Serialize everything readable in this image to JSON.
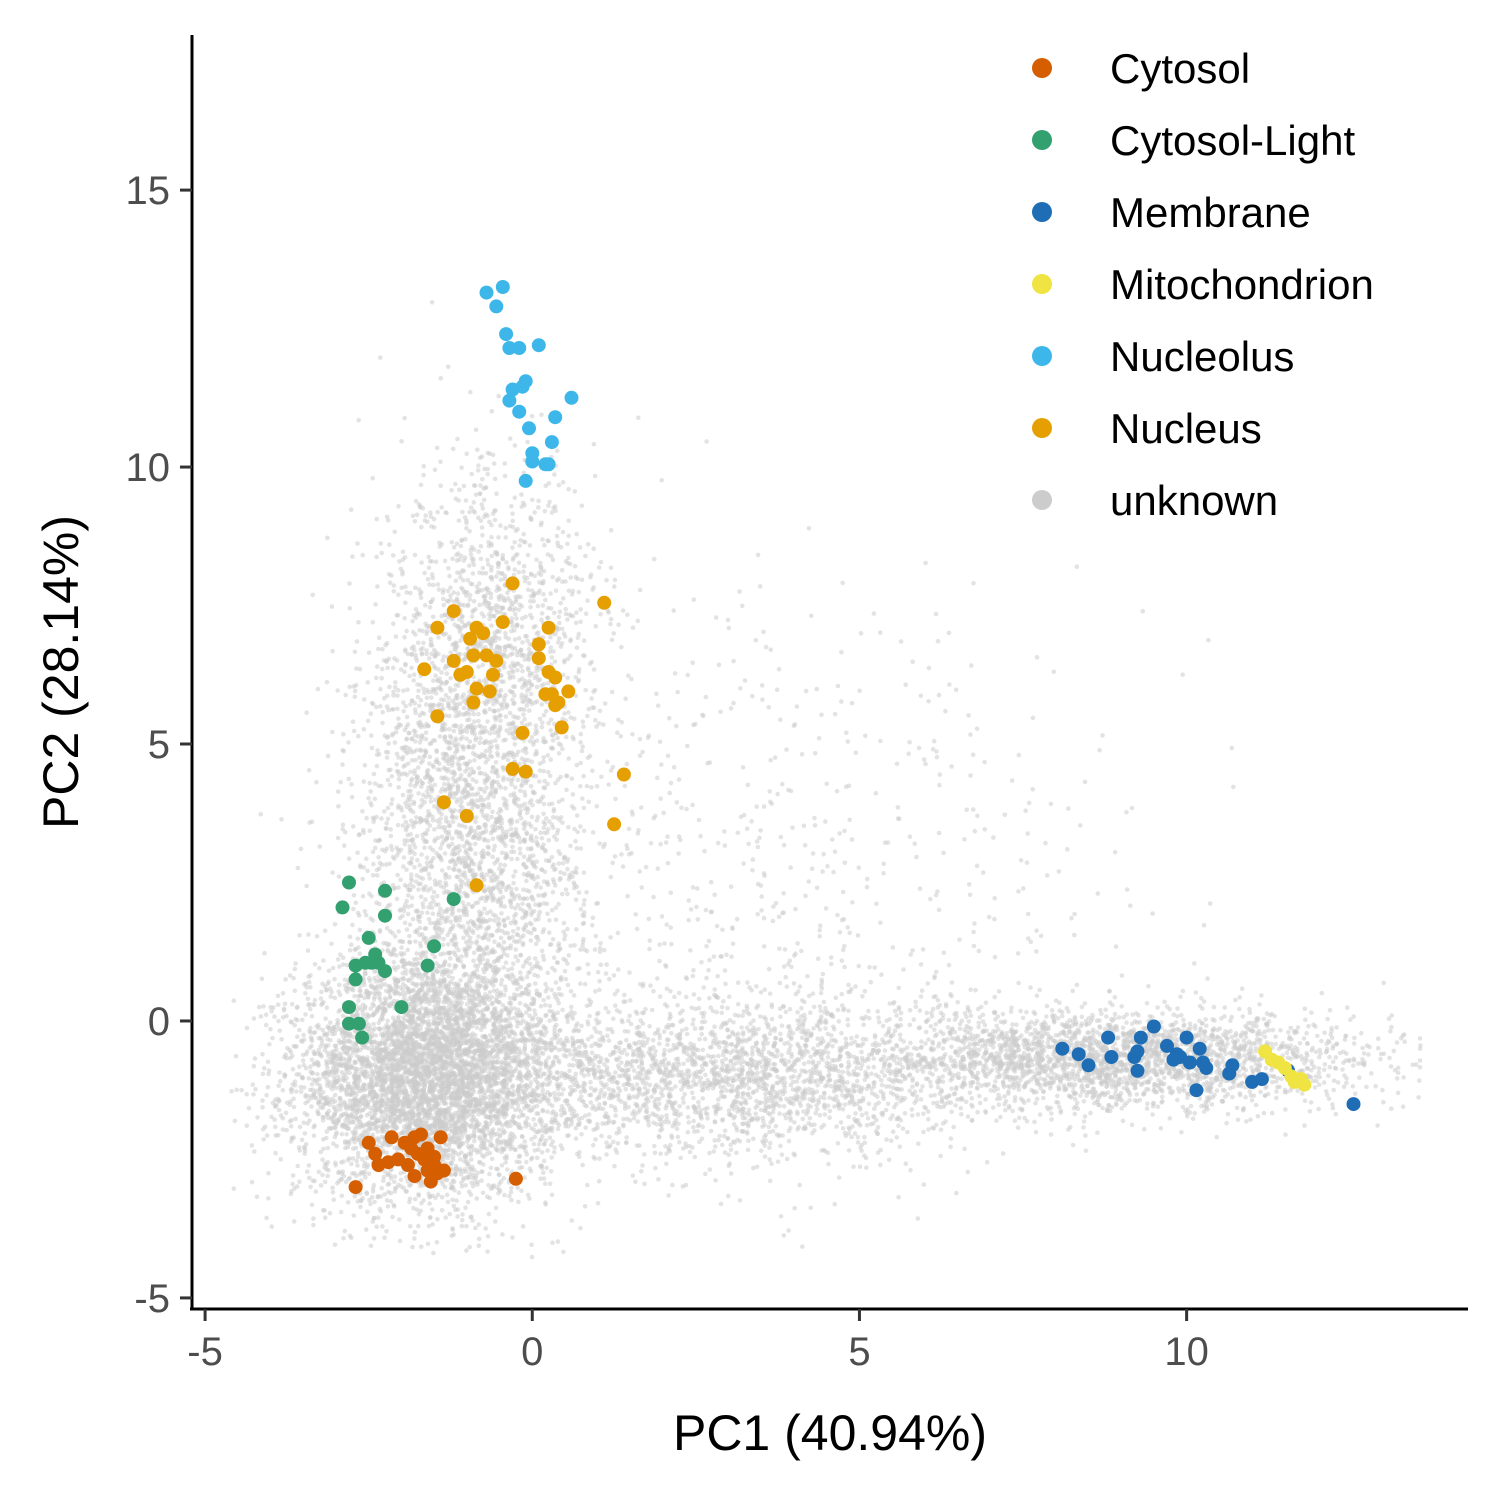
{
  "chart_data": {
    "type": "scatter",
    "title": "",
    "xlabel": "PC1 (40.94%)",
    "ylabel": "PC2 (28.14%)",
    "xlim": [
      -5.2,
      14.3
    ],
    "ylim": [
      -5.2,
      17.8
    ],
    "x_ticks": [
      -5,
      0,
      5,
      10
    ],
    "y_ticks": [
      -5,
      0,
      5,
      10,
      15
    ],
    "x_tick_labels": [
      "-5",
      "0",
      "5",
      "10"
    ],
    "y_tick_labels": [
      "-5",
      "0",
      "5",
      "10",
      "15"
    ],
    "grid": false,
    "legend_position": "top-right",
    "legend_marker": "●",
    "series": [
      {
        "name": "Cytosol",
        "color": "#D55E00",
        "points": [
          [
            -2.7,
            -3.0
          ],
          [
            -2.5,
            -2.2
          ],
          [
            -2.4,
            -2.4
          ],
          [
            -2.35,
            -2.6
          ],
          [
            -2.2,
            -2.55
          ],
          [
            -2.15,
            -2.1
          ],
          [
            -2.05,
            -2.5
          ],
          [
            -1.95,
            -2.2
          ],
          [
            -1.9,
            -2.6
          ],
          [
            -1.85,
            -2.3
          ],
          [
            -1.8,
            -2.1
          ],
          [
            -1.8,
            -2.8
          ],
          [
            -1.75,
            -2.4
          ],
          [
            -1.7,
            -2.05
          ],
          [
            -1.65,
            -2.5
          ],
          [
            -1.6,
            -2.7
          ],
          [
            -1.6,
            -2.3
          ],
          [
            -1.55,
            -2.9
          ],
          [
            -1.5,
            -2.6
          ],
          [
            -1.5,
            -2.45
          ],
          [
            -1.45,
            -2.75
          ],
          [
            -1.4,
            -2.1
          ],
          [
            -1.35,
            -2.7
          ],
          [
            -0.25,
            -2.85
          ]
        ]
      },
      {
        "name": "Cytosol-Light",
        "color": "#33A070",
        "points": [
          [
            -2.9,
            2.05
          ],
          [
            -2.8,
            2.5
          ],
          [
            -2.8,
            0.25
          ],
          [
            -2.8,
            -0.05
          ],
          [
            -2.7,
            0.75
          ],
          [
            -2.7,
            1.0
          ],
          [
            -2.65,
            -0.05
          ],
          [
            -2.6,
            -0.3
          ],
          [
            -2.55,
            1.05
          ],
          [
            -2.5,
            1.5
          ],
          [
            -2.45,
            1.05
          ],
          [
            -2.4,
            1.2
          ],
          [
            -2.35,
            1.05
          ],
          [
            -2.25,
            2.35
          ],
          [
            -2.25,
            1.9
          ],
          [
            -2.25,
            0.9
          ],
          [
            -2.0,
            0.25
          ],
          [
            -1.6,
            1.0
          ],
          [
            -1.5,
            1.35
          ],
          [
            -1.2,
            2.2
          ]
        ]
      },
      {
        "name": "Membrane",
        "color": "#1F6EB5",
        "points": [
          [
            8.1,
            -0.5
          ],
          [
            8.35,
            -0.6
          ],
          [
            8.5,
            -0.8
          ],
          [
            8.8,
            -0.3
          ],
          [
            8.85,
            -0.65
          ],
          [
            9.2,
            -0.65
          ],
          [
            9.25,
            -0.55
          ],
          [
            9.25,
            -0.9
          ],
          [
            9.3,
            -0.3
          ],
          [
            9.5,
            -0.1
          ],
          [
            9.7,
            -0.45
          ],
          [
            9.8,
            -0.7
          ],
          [
            9.85,
            -0.6
          ],
          [
            9.9,
            -0.65
          ],
          [
            10.0,
            -0.3
          ],
          [
            10.05,
            -0.75
          ],
          [
            10.15,
            -1.25
          ],
          [
            10.2,
            -0.5
          ],
          [
            10.25,
            -0.75
          ],
          [
            10.3,
            -0.85
          ],
          [
            10.65,
            -0.95
          ],
          [
            10.7,
            -0.8
          ],
          [
            11.0,
            -1.1
          ],
          [
            11.15,
            -1.05
          ],
          [
            11.55,
            -0.9
          ],
          [
            12.55,
            -1.5
          ]
        ]
      },
      {
        "name": "Mitochondrion",
        "color": "#F0E442",
        "points": [
          [
            11.2,
            -0.55
          ],
          [
            11.3,
            -0.7
          ],
          [
            11.4,
            -0.75
          ],
          [
            11.5,
            -0.85
          ],
          [
            11.6,
            -1.0
          ],
          [
            11.65,
            -1.1
          ],
          [
            11.75,
            -1.05
          ],
          [
            11.8,
            -1.15
          ]
        ]
      },
      {
        "name": "Nucleolus",
        "color": "#3DB7E9",
        "points": [
          [
            -0.7,
            13.15
          ],
          [
            -0.55,
            12.9
          ],
          [
            -0.45,
            13.25
          ],
          [
            -0.4,
            12.4
          ],
          [
            -0.35,
            12.15
          ],
          [
            -0.35,
            11.2
          ],
          [
            -0.3,
            11.4
          ],
          [
            -0.2,
            12.15
          ],
          [
            -0.2,
            11.0
          ],
          [
            -0.15,
            11.45
          ],
          [
            -0.1,
            11.55
          ],
          [
            -0.05,
            10.7
          ],
          [
            0.0,
            10.25
          ],
          [
            0.0,
            10.1
          ],
          [
            0.1,
            12.2
          ],
          [
            0.2,
            10.05
          ],
          [
            0.25,
            10.05
          ],
          [
            0.3,
            10.45
          ],
          [
            0.35,
            10.9
          ],
          [
            0.6,
            11.25
          ],
          [
            -0.1,
            9.75
          ]
        ]
      },
      {
        "name": "Nucleus",
        "color": "#E69F00",
        "points": [
          [
            -0.3,
            7.9
          ],
          [
            -0.45,
            7.2
          ],
          [
            -1.2,
            7.4
          ],
          [
            -1.45,
            7.1
          ],
          [
            -0.85,
            7.1
          ],
          [
            -0.75,
            7.0
          ],
          [
            -0.95,
            6.9
          ],
          [
            -0.9,
            6.6
          ],
          [
            -1.2,
            6.5
          ],
          [
            -1.0,
            6.3
          ],
          [
            -1.1,
            6.25
          ],
          [
            -0.85,
            6.0
          ],
          [
            -0.9,
            5.75
          ],
          [
            -0.6,
            6.25
          ],
          [
            -0.55,
            6.5
          ],
          [
            -0.7,
            6.6
          ],
          [
            -1.65,
            6.35
          ],
          [
            -0.65,
            5.95
          ],
          [
            -1.45,
            5.5
          ],
          [
            0.25,
            7.1
          ],
          [
            0.1,
            6.8
          ],
          [
            0.1,
            6.55
          ],
          [
            0.25,
            6.3
          ],
          [
            0.35,
            6.2
          ],
          [
            0.3,
            5.9
          ],
          [
            0.2,
            5.9
          ],
          [
            0.4,
            5.75
          ],
          [
            0.35,
            5.7
          ],
          [
            0.55,
            5.95
          ],
          [
            -0.15,
            5.2
          ],
          [
            0.45,
            5.3
          ],
          [
            1.1,
            7.55
          ],
          [
            -0.3,
            4.55
          ],
          [
            -0.1,
            4.5
          ],
          [
            1.4,
            4.45
          ],
          [
            -1.35,
            3.95
          ],
          [
            -1.0,
            3.7
          ],
          [
            1.25,
            3.55
          ],
          [
            -0.85,
            2.45
          ]
        ]
      },
      {
        "name": "unknown",
        "color": "#CCCCCC",
        "points": []
      }
    ]
  }
}
